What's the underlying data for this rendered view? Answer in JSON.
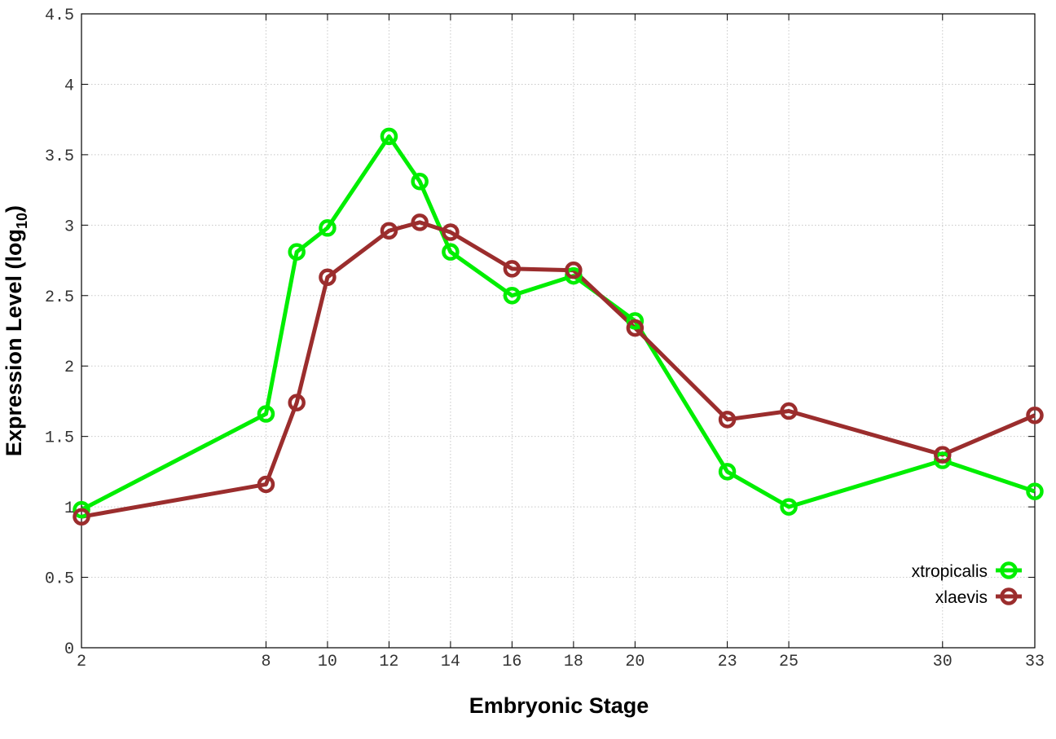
{
  "chart_data": {
    "type": "line",
    "xlabel": "Embryonic Stage",
    "ylabel_main": "Expression Level (log",
    "ylabel_sub": "10",
    "ylabel_close": ")",
    "x_ticks": [
      2,
      8,
      10,
      12,
      14,
      16,
      18,
      20,
      23,
      25,
      30,
      33
    ],
    "y_ticks": [
      "0",
      "0.5",
      "1",
      "1.5",
      "2",
      "2.5",
      "3",
      "3.5",
      "4",
      "4.5"
    ],
    "xlim": [
      2,
      33
    ],
    "ylim": [
      0,
      4.5
    ],
    "grid": true,
    "legend_position": "bottom-right",
    "series": [
      {
        "name": "xtropicalis",
        "color": "#00ee00",
        "x": [
          2,
          8,
          9,
          10,
          12,
          13,
          14,
          16,
          18,
          20,
          23,
          25,
          30,
          33
        ],
        "y": [
          0.98,
          1.66,
          2.81,
          2.98,
          3.63,
          3.31,
          2.81,
          2.5,
          2.64,
          2.32,
          1.25,
          1.0,
          1.33,
          1.11
        ]
      },
      {
        "name": "xlaevis",
        "color": "#9b2d2d",
        "x": [
          2,
          8,
          9,
          10,
          12,
          13,
          14,
          16,
          18,
          20,
          23,
          25,
          30,
          33
        ],
        "y": [
          0.93,
          1.16,
          1.74,
          2.63,
          2.96,
          3.02,
          2.95,
          2.69,
          2.68,
          2.27,
          1.62,
          1.68,
          1.37,
          1.65
        ]
      }
    ]
  }
}
